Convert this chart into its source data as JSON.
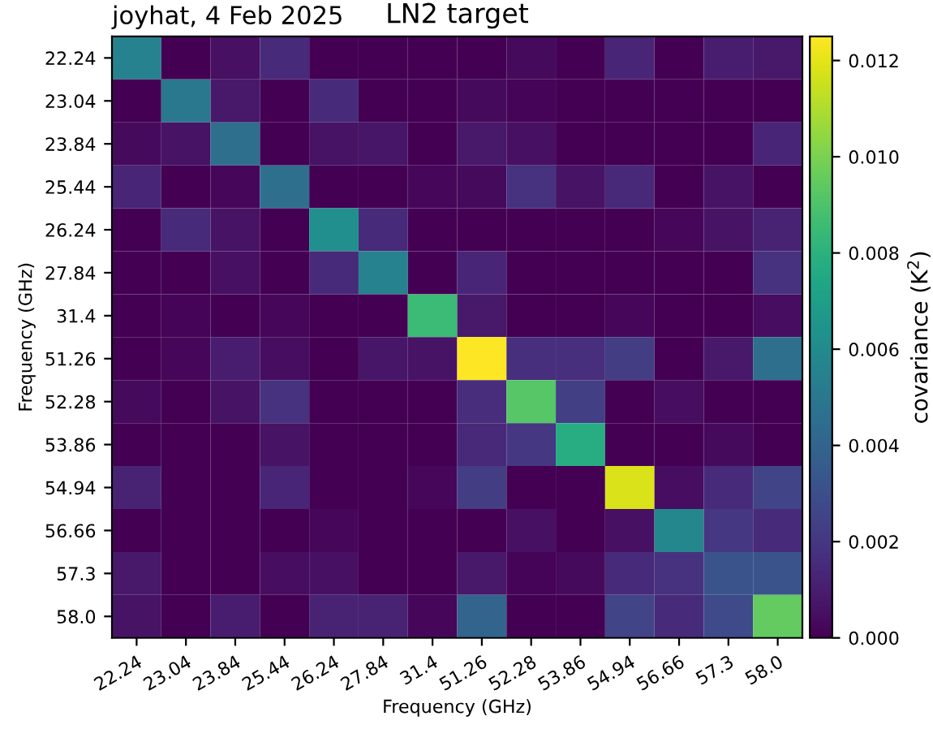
{
  "chart_data": {
    "type": "heatmap",
    "title": "LN2 target",
    "subtitle": "joyhat, 4 Feb 2025",
    "xlabel": "Frequency (GHz)",
    "ylabel": "Frequency (GHz)",
    "clabel": "covariance (K$^{2}$)",
    "categories": [
      "22.24",
      "23.04",
      "23.84",
      "25.44",
      "26.24",
      "27.84",
      "31.4",
      "51.26",
      "52.28",
      "53.86",
      "54.94",
      "56.66",
      "57.3",
      "58.0"
    ],
    "y_categories": [
      "22.24",
      "23.04",
      "23.84",
      "25.44",
      "26.24",
      "27.84",
      "31.4",
      "51.26",
      "52.28",
      "53.86",
      "54.94",
      "56.66",
      "57.3",
      "58.0"
    ],
    "cells": [
      [
        0.0055,
        0,
        0.0005,
        0.0015,
        0,
        0,
        0,
        0,
        0.0003,
        0,
        0.0013,
        0,
        0.001,
        0.0008
      ],
      [
        0,
        0.005,
        0.0008,
        0,
        0.0015,
        0,
        0,
        0.0003,
        0.0001,
        0,
        0,
        0,
        0,
        0
      ],
      [
        0.0003,
        0.0006,
        0.0045,
        0,
        0.0006,
        0.0007,
        0,
        0.0008,
        0.0005,
        0,
        0,
        0,
        0,
        0.0013
      ],
      [
        0.0013,
        0,
        0.0002,
        0.0045,
        0,
        0,
        0.0002,
        0.0003,
        0.0018,
        0.0006,
        0.0014,
        0,
        0.0006,
        0
      ],
      [
        0,
        0.0015,
        0.0006,
        0,
        0.0062,
        0.0015,
        0,
        0,
        0,
        0,
        0,
        0.0002,
        0.0006,
        0.0012
      ],
      [
        0,
        0,
        0.0005,
        0,
        0.0015,
        0.0055,
        0,
        0.0013,
        0,
        0,
        0,
        0,
        0,
        0.0018
      ],
      [
        0,
        0.0001,
        0,
        0.0002,
        0,
        0,
        0.0085,
        0.0008,
        0,
        0,
        0.0002,
        0,
        0,
        0.0004
      ],
      [
        0,
        0.0002,
        0.001,
        0.0004,
        0,
        0.0007,
        0.0006,
        0.0125,
        0.0017,
        0.0017,
        0.0022,
        0,
        0.0008,
        0.0045
      ],
      [
        0.0003,
        0,
        0.0006,
        0.0018,
        0,
        0,
        0,
        0.0016,
        0.0092,
        0.0023,
        0,
        0.0004,
        0,
        0
      ],
      [
        0,
        0,
        0,
        0.0006,
        0,
        0,
        0,
        0.0014,
        0.002,
        0.0078,
        0,
        0,
        0.0003,
        0
      ],
      [
        0.0012,
        0,
        0,
        0.0013,
        0,
        0,
        0.0002,
        0.0022,
        0,
        0,
        0.0118,
        0.0004,
        0.0015,
        0.0025
      ],
      [
        0,
        0,
        0,
        0,
        0.0002,
        0,
        0,
        0,
        0.0005,
        0,
        0.0005,
        0.0058,
        0.002,
        0.0015
      ],
      [
        0.0008,
        0,
        0,
        0.0004,
        0.0005,
        0,
        0,
        0.0008,
        0.0001,
        0.0003,
        0.0015,
        0.0018,
        0.0032,
        0.0032
      ],
      [
        0.0006,
        0,
        0.001,
        0,
        0.0012,
        0.0012,
        0.0002,
        0.004,
        0,
        0,
        0.0025,
        0.0015,
        0.0028,
        0.0095
      ]
    ],
    "clim": [
      0,
      0.0125
    ],
    "cticks": [
      {
        "value": 0,
        "label": "0.000"
      },
      {
        "value": 0.002,
        "label": "0.002"
      },
      {
        "value": 0.004,
        "label": "0.004"
      },
      {
        "value": 0.006,
        "label": "0.006"
      },
      {
        "value": 0.008,
        "label": "0.008"
      },
      {
        "value": 0.01,
        "label": "0.010"
      },
      {
        "value": 0.012,
        "label": "0.012"
      }
    ]
  }
}
